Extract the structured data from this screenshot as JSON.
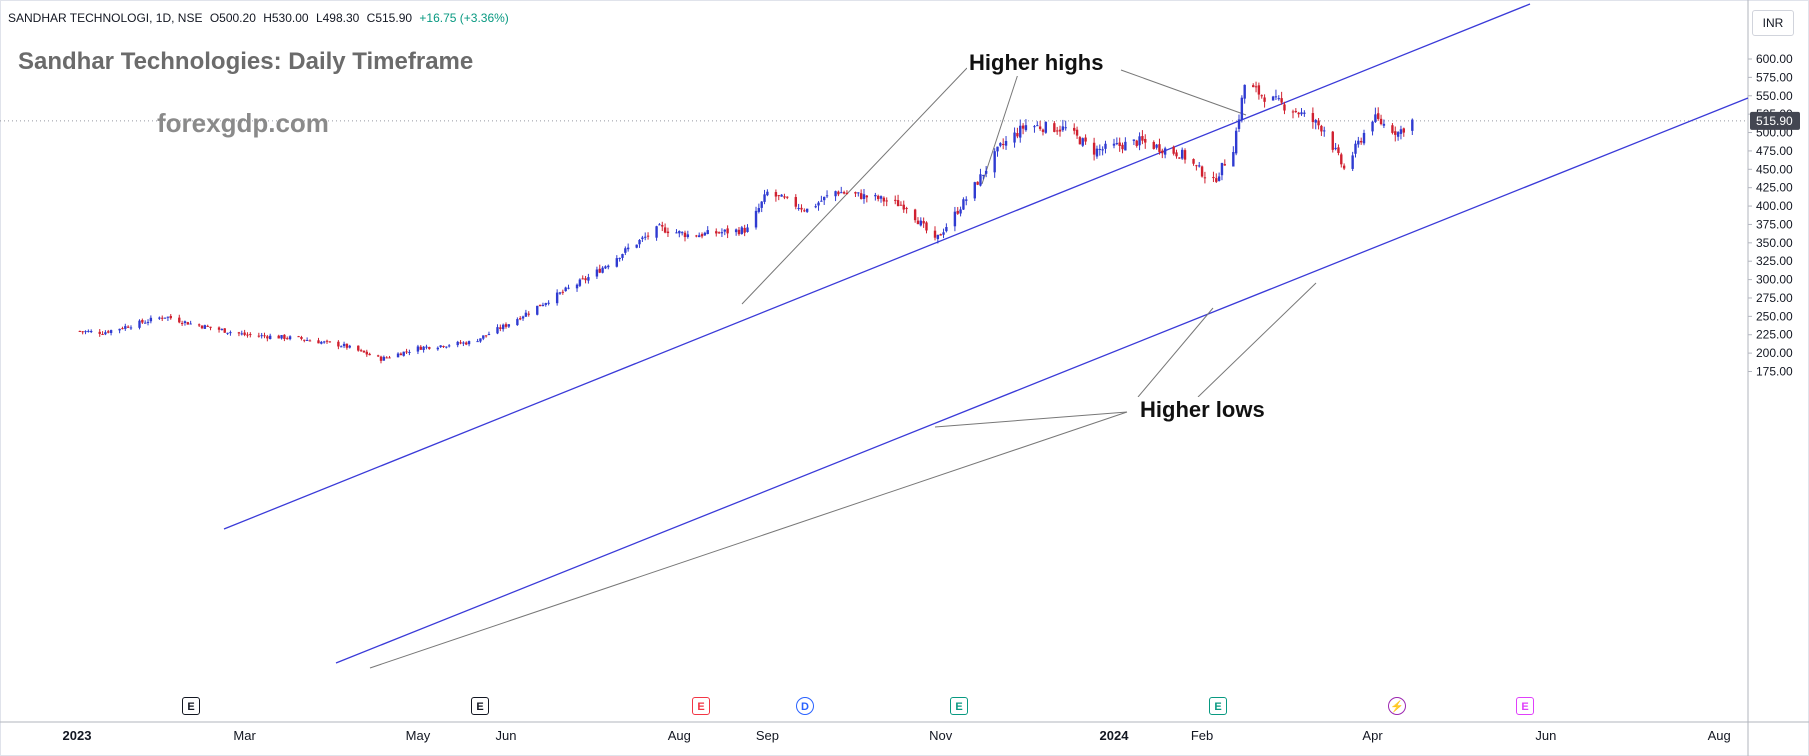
{
  "header": {
    "symbol": "SANDHAR TECHNOLOGI, 1D, NSE",
    "open": "O500.20",
    "high": "H530.00",
    "low": "L498.30",
    "close": "C515.90",
    "change": "+16.75 (+3.36%)"
  },
  "currency_button": "INR",
  "price_tag": "515.90",
  "annotations": {
    "higher_highs": "Higher highs",
    "higher_lows": "Higher lows"
  },
  "events": [
    {
      "label": "E",
      "color": "#131722",
      "shape": "square"
    },
    {
      "label": "E",
      "color": "#131722",
      "shape": "square"
    },
    {
      "label": "E",
      "color": "#f23645",
      "shape": "shield"
    },
    {
      "label": "D",
      "color": "#2962ff",
      "shape": "circle"
    },
    {
      "label": "E",
      "color": "#089981",
      "shape": "shield"
    },
    {
      "label": "E",
      "color": "#089981",
      "shape": "shield"
    },
    {
      "label": "⚡",
      "color": "#9c27b0",
      "shape": "circle"
    },
    {
      "label": "E",
      "color": "#e040fb",
      "shape": "square"
    }
  ],
  "colors": {
    "up": "#2f3bd1",
    "down": "#d0202f",
    "channel": "#3a3ad8",
    "annotation_line": "#777777"
  },
  "chart_data": {
    "type": "candlestick",
    "title": "Sandhar Technologies: Daily Timeframe",
    "watermark": "forexgdp.com",
    "ylim": [
      150,
      625
    ],
    "y_ticks": [
      "175.00",
      "200.00",
      "225.00",
      "250.00",
      "275.00",
      "300.00",
      "325.00",
      "350.00",
      "375.00",
      "400.00",
      "425.00",
      "450.00",
      "475.00",
      "500.00",
      "525.00",
      "550.00",
      "575.00",
      "600.00"
    ],
    "x_ticks": [
      "2023",
      "Mar",
      "May",
      "Jun",
      "Aug",
      "Sep",
      "Nov",
      "2024",
      "Feb",
      "Apr",
      "Jun",
      "Aug"
    ],
    "x_bold_ticks": [
      "2023",
      "2024"
    ],
    "last_price": 515.9,
    "approx_price_path": [
      {
        "date": "2023-01-01",
        "close": 230
      },
      {
        "date": "2023-01-10",
        "close": 228
      },
      {
        "date": "2023-01-20",
        "close": 238
      },
      {
        "date": "2023-02-01",
        "close": 250
      },
      {
        "date": "2023-02-10",
        "close": 240
      },
      {
        "date": "2023-03-01",
        "close": 225
      },
      {
        "date": "2023-03-20",
        "close": 220
      },
      {
        "date": "2023-04-05",
        "close": 210
      },
      {
        "date": "2023-04-18",
        "close": 192
      },
      {
        "date": "2023-05-01",
        "close": 207
      },
      {
        "date": "2023-05-20",
        "close": 215
      },
      {
        "date": "2023-06-01",
        "close": 238
      },
      {
        "date": "2023-06-15",
        "close": 270
      },
      {
        "date": "2023-07-01",
        "close": 305
      },
      {
        "date": "2023-07-15",
        "close": 345
      },
      {
        "date": "2023-07-25",
        "close": 370
      },
      {
        "date": "2023-08-05",
        "close": 360
      },
      {
        "date": "2023-08-25",
        "close": 368
      },
      {
        "date": "2023-09-01",
        "close": 418
      },
      {
        "date": "2023-09-15",
        "close": 395
      },
      {
        "date": "2023-09-25",
        "close": 420
      },
      {
        "date": "2023-10-10",
        "close": 410
      },
      {
        "date": "2023-10-20",
        "close": 400
      },
      {
        "date": "2023-10-30",
        "close": 352
      },
      {
        "date": "2023-11-10",
        "close": 410
      },
      {
        "date": "2023-11-22",
        "close": 480
      },
      {
        "date": "2023-12-01",
        "close": 510
      },
      {
        "date": "2023-12-15",
        "close": 505
      },
      {
        "date": "2023-12-25",
        "close": 475
      },
      {
        "date": "2024-01-10",
        "close": 488
      },
      {
        "date": "2024-01-25",
        "close": 470
      },
      {
        "date": "2024-02-05",
        "close": 432
      },
      {
        "date": "2024-02-12",
        "close": 480
      },
      {
        "date": "2024-02-16",
        "close": 565
      },
      {
        "date": "2024-02-25",
        "close": 545
      },
      {
        "date": "2024-03-05",
        "close": 530
      },
      {
        "date": "2024-03-15",
        "close": 505
      },
      {
        "date": "2024-03-22",
        "close": 450
      },
      {
        "date": "2024-04-01",
        "close": 520
      },
      {
        "date": "2024-04-10",
        "close": 500
      },
      {
        "date": "2024-04-15",
        "close": 515.9
      }
    ]
  }
}
